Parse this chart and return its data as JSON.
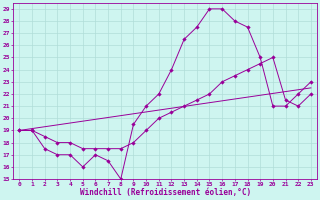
{
  "xlabel": "Windchill (Refroidissement éolien,°C)",
  "background_color": "#cef5f0",
  "line_color": "#990099",
  "xlim": [
    -0.5,
    23.5
  ],
  "ylim": [
    15,
    29.5
  ],
  "yticks": [
    15,
    16,
    17,
    18,
    19,
    20,
    21,
    22,
    23,
    24,
    25,
    26,
    27,
    28,
    29
  ],
  "xticks": [
    0,
    1,
    2,
    3,
    4,
    5,
    6,
    7,
    8,
    9,
    10,
    11,
    12,
    13,
    14,
    15,
    16,
    17,
    18,
    19,
    20,
    21,
    22,
    23
  ],
  "line1_x": [
    0,
    1,
    2,
    3,
    4,
    5,
    6,
    7,
    8,
    9,
    10,
    11,
    12,
    13,
    14,
    15,
    16,
    17,
    18,
    19,
    20,
    21,
    22,
    23
  ],
  "line1_y": [
    19,
    19,
    17.5,
    17,
    17,
    16,
    17,
    16.5,
    15,
    19.5,
    21,
    22,
    24,
    26.5,
    27.5,
    29,
    29,
    28,
    27.5,
    25,
    21,
    21,
    22,
    23
  ],
  "line2_x": [
    0,
    1,
    2,
    3,
    4,
    5,
    6,
    7,
    8,
    9,
    10,
    11,
    12,
    13,
    14,
    15,
    16,
    17,
    18,
    19,
    20,
    21,
    22,
    23
  ],
  "line2_y": [
    19,
    19,
    18.5,
    18,
    18,
    17.5,
    17.5,
    17.5,
    17.5,
    18,
    19,
    20,
    20.5,
    21,
    21.5,
    22,
    23,
    23.5,
    24,
    24.5,
    25,
    21.5,
    21,
    22
  ],
  "line3_x": [
    0,
    23
  ],
  "line3_y": [
    19,
    22.5
  ],
  "grid_color": "#b0ddd8",
  "tick_fontsize": 4.5,
  "label_fontsize": 5.5
}
